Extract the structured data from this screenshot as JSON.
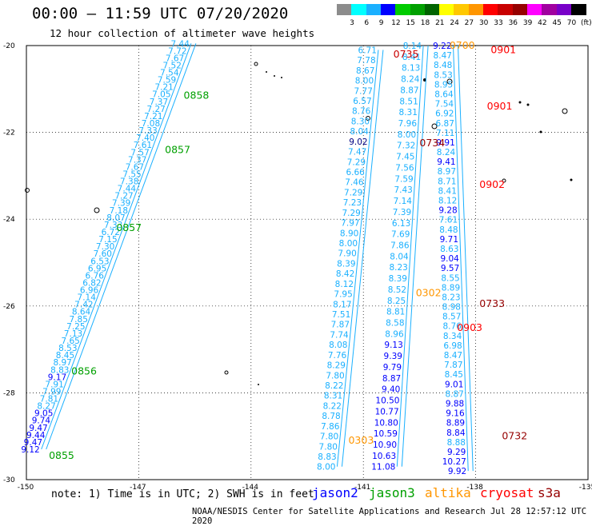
{
  "header": {
    "title": "00:00 – 11:59 UTC 07/20/2020",
    "subtitle": "12 hour collection of altimeter wave heights"
  },
  "colorbar": {
    "colors": [
      "#8c8c8c",
      "#00ffff",
      "#1ab0ff",
      "#0000ff",
      "#00cc00",
      "#00a000",
      "#006400",
      "#ffff00",
      "#ffc800",
      "#ff9600",
      "#ff0000",
      "#c80000",
      "#960000",
      "#ff00ff",
      "#a000a0",
      "#7800c8",
      "#000000"
    ],
    "labels": [
      "3",
      "6",
      "9",
      "12",
      "15",
      "18",
      "21",
      "24",
      "27",
      "30",
      "33",
      "36",
      "39",
      "42",
      "45",
      "70",
      "(ft)"
    ]
  },
  "axes": {
    "x_ticks": [
      "-150",
      "-147",
      "-144",
      "-141",
      "-138",
      "-135"
    ],
    "y_ticks": [
      "-20",
      "-22",
      "-24",
      "-26",
      "-28",
      "-30"
    ]
  },
  "note": "note: 1) Time is in UTC; 2) SWH is in feet",
  "legend": [
    {
      "label": "jason2",
      "color": "#0000ff"
    },
    {
      "label": "jason3",
      "color": "#00a000"
    },
    {
      "label": "altika",
      "color": "#ff9600"
    },
    {
      "label": "cryosat",
      "color": "#ff0000"
    },
    {
      "label": "s3a",
      "color": "#960000"
    }
  ],
  "footer": "NOAA/NESDIS Center for Satellite Applications and Research   Jul 28 12:57:12 UTC 2020",
  "map": {
    "time_labels": [
      {
        "text": "0858",
        "lon": -145.8,
        "lat": -21.15,
        "color": "#00a000"
      },
      {
        "text": "0857",
        "lon": -146.3,
        "lat": -22.4,
        "color": "#00a000"
      },
      {
        "text": "0857",
        "lon": -147.6,
        "lat": -24.2,
        "color": "#00a000"
      },
      {
        "text": "0856",
        "lon": -148.8,
        "lat": -27.5,
        "color": "#00a000"
      },
      {
        "text": "0855",
        "lon": -149.4,
        "lat": -29.45,
        "color": "#00a000"
      },
      {
        "text": "0735",
        "lon": -140.2,
        "lat": -20.2,
        "color": "#c80000"
      },
      {
        "text": "0734",
        "lon": -139.5,
        "lat": -22.25,
        "color": "#960000"
      },
      {
        "text": "0733",
        "lon": -137.9,
        "lat": -25.95,
        "color": "#960000"
      },
      {
        "text": "0732",
        "lon": -137.3,
        "lat": -29.0,
        "color": "#960000"
      },
      {
        "text": "0700",
        "lon": -138.7,
        "lat": -20.0,
        "color": "#ff9600"
      },
      {
        "text": "0302",
        "lon": -139.6,
        "lat": -25.7,
        "color": "#ff9600"
      },
      {
        "text": "0303",
        "lon": -141.4,
        "lat": -29.1,
        "color": "#ff9600"
      },
      {
        "text": "0901",
        "lon": -137.6,
        "lat": -20.1,
        "color": "#ff0000"
      },
      {
        "text": "0901",
        "lon": -137.7,
        "lat": -21.4,
        "color": "#ff0000"
      },
      {
        "text": "0902",
        "lon": -137.9,
        "lat": -23.2,
        "color": "#ff0000"
      },
      {
        "text": "0903",
        "lon": -138.5,
        "lat": -26.5,
        "color": "#ff0000"
      }
    ],
    "tracks": [
      {
        "name": "jason3-track",
        "color": "#1ab0ff",
        "start": [
          -145.6,
          -19.95
        ],
        "end": [
          -149.6,
          -29.3
        ],
        "values": [
          "7.44",
          "7.72",
          "7.67",
          "7.52",
          "7.54",
          "7.59",
          "7.21",
          "7.05",
          "7.37",
          "7.27",
          "7.21",
          "7.08",
          "7.33",
          "7.40",
          "7.61",
          "7.57",
          "7.37",
          "7.67",
          "7.55",
          "7.38",
          "7.44",
          "7.27",
          "7.39",
          "7.18",
          "8.07",
          "7.33",
          "6.72",
          "7.15",
          "7.30",
          "7.60",
          "6.53",
          "6.95",
          "6.76",
          "6.82",
          "6.96",
          "7.14",
          "7.42",
          "8.64",
          "7.85",
          "7.25",
          "7.13",
          "7.65",
          "8.53",
          "8.45",
          "8.97",
          "8.83",
          "9.17",
          "7.91",
          "7.99",
          "7.81",
          "8.27",
          "9.05",
          "9.74",
          "9.47",
          "9.44",
          "9.47",
          "9.12"
        ],
        "value_colors": {
          "46": "#0000ff",
          "51": "#0000ff",
          "52": "#0000ff",
          "53": "#0000ff",
          "54": "#0000ff",
          "55": "#0000ff",
          "56": "#0000ff"
        }
      },
      {
        "name": "altika-track-west",
        "color": "#1ab0ff",
        "start": [
          -140.6,
          -20.1
        ],
        "end": [
          -141.7,
          -29.7
        ],
        "values": [
          "6.71",
          "7.78",
          "8.67",
          "8.00",
          "7.77",
          "6.57",
          "8.76",
          "8.30",
          "8.04",
          "9.02",
          "7.47",
          "7.29",
          "6.66",
          "7.46",
          "7.29",
          "7.23",
          "7.29",
          "7.97",
          "8.90",
          "8.00",
          "7.90",
          "8.39",
          "8.42",
          "8.12",
          "7.95",
          "8.17",
          "7.51",
          "7.87",
          "7.74",
          "8.08",
          "7.76",
          "8.29",
          "7.80",
          "8.22",
          "8.31",
          "8.22",
          "8.78",
          "7.86",
          "7.80",
          "7.80",
          "8.83",
          "8.00"
        ],
        "value_colors": {
          "9": "#000080"
        }
      },
      {
        "name": "altika-track-east",
        "color": "#1ab0ff",
        "start": [
          -139.4,
          -20.0
        ],
        "end": [
          -140.1,
          -29.7
        ],
        "values": [
          "8.14",
          "8.41",
          "8.13",
          "8.24",
          "8.87",
          "8.51",
          "8.31",
          "7.96",
          "8.00",
          "7.32",
          "7.45",
          "7.56",
          "7.59",
          "7.43",
          "7.14",
          "7.39",
          "6.13",
          "7.69",
          "7.86",
          "8.04",
          "8.23",
          "8.39",
          "8.52",
          "8.25",
          "8.81",
          "8.58",
          "8.96",
          "9.13",
          "9.39",
          "9.79",
          "8.87",
          "9.40",
          "10.50",
          "10.77",
          "10.80",
          "10.59",
          "10.90",
          "10.63",
          "11.08"
        ],
        "value_colors": {
          "27": "#0000ff",
          "28": "#0000ff",
          "29": "#0000ff",
          "30": "#0000ff",
          "31": "#0000ff",
          "32": "#0000ff",
          "33": "#0000ff",
          "34": "#0000ff",
          "35": "#0000ff",
          "36": "#0000ff",
          "37": "#0000ff",
          "38": "#0000ff"
        }
      },
      {
        "name": "cryosat-track",
        "color": "#1ab0ff",
        "start": [
          -138.6,
          -20.0
        ],
        "end": [
          -138.2,
          -29.8
        ],
        "values": [
          "9.22",
          "8.47",
          "8.48",
          "8.53",
          "8.95",
          "8.64",
          "7.54",
          "6.92",
          "6.87",
          "7.11",
          "9.91",
          "8.24",
          "9.41",
          "8.97",
          "8.71",
          "8.41",
          "8.12",
          "9.28",
          "7.61",
          "8.48",
          "9.71",
          "8.63",
          "9.04",
          "9.57",
          "8.55",
          "8.89",
          "8.23",
          "8.98",
          "8.57",
          "8.76",
          "8.34",
          "6.98",
          "8.47",
          "7.87",
          "8.45",
          "9.01",
          "8.87",
          "9.88",
          "9.16",
          "8.89",
          "8.84",
          "8.88",
          "9.29",
          "10.27",
          "9.92"
        ],
        "value_colors": {
          "0": "#0000ff",
          "10": "#0000ff",
          "12": "#0000ff",
          "17": "#0000ff",
          "20": "#0000ff",
          "22": "#0000ff",
          "23": "#0000ff",
          "35": "#0000ff",
          "37": "#0000ff",
          "38": "#0000ff",
          "39": "#0000ff",
          "40": "#0000ff",
          "42": "#0000ff",
          "43": "#0000ff",
          "44": "#0000ff"
        }
      }
    ]
  }
}
